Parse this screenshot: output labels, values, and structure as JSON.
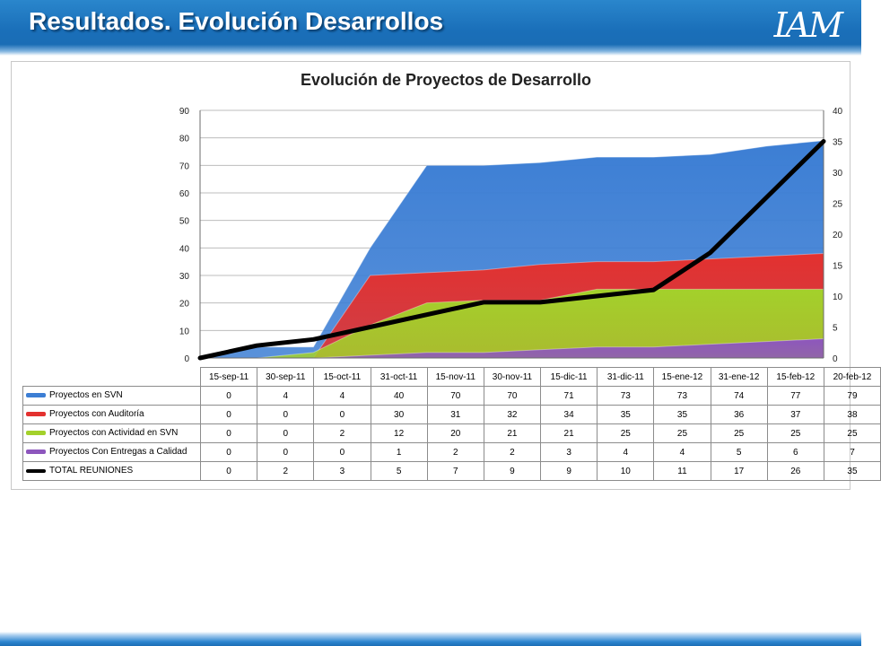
{
  "slide": {
    "title": "Resultados. Evolución Desarrollos",
    "logo": "IAM"
  },
  "colors": {
    "header": "#1a6fb9",
    "svn": "#3c7ed4",
    "auditoria": "#e3312f",
    "actividad": "#a3d12b",
    "entregas": "#8d56bd",
    "reuniones": "#000000"
  },
  "chart_data": {
    "type": "area",
    "title": "Evolución de Proyectos de Desarrollo",
    "categories": [
      "15-sep-11",
      "30-sep-11",
      "15-oct-11",
      "31-oct-11",
      "15-nov-11",
      "30-nov-11",
      "15-dic-11",
      "31-dic-11",
      "15-ene-12",
      "31-ene-12",
      "15-feb-12",
      "20-feb-12"
    ],
    "y_left": {
      "min": 0,
      "max": 90,
      "step": 10,
      "ticks": [
        "0",
        "10",
        "20",
        "30",
        "40",
        "50",
        "60",
        "70",
        "80",
        "90"
      ]
    },
    "y_right": {
      "min": 0,
      "max": 40,
      "step": 5,
      "ticks": [
        "0",
        "5",
        "10",
        "15",
        "20",
        "25",
        "30",
        "35",
        "40"
      ]
    },
    "grid": true,
    "legend": "data-table",
    "series": [
      {
        "name": "Proyectos en SVN",
        "kind": "area",
        "axis": "left",
        "color": "#3c7ed4",
        "values": [
          0,
          4,
          4,
          40,
          70,
          70,
          71,
          73,
          73,
          74,
          77,
          79
        ]
      },
      {
        "name": "Proyectos con Auditoría",
        "kind": "area",
        "axis": "left",
        "color": "#e3312f",
        "values": [
          0,
          0,
          0,
          30,
          31,
          32,
          34,
          35,
          35,
          36,
          37,
          38
        ]
      },
      {
        "name": "Proyectos con Actividad en SVN",
        "kind": "area",
        "axis": "left",
        "color": "#a3d12b",
        "values": [
          0,
          0,
          2,
          12,
          20,
          21,
          21,
          25,
          25,
          25,
          25,
          25
        ]
      },
      {
        "name": "Proyectos Con Entregas a Calidad",
        "kind": "area",
        "axis": "left",
        "color": "#8d56bd",
        "values": [
          0,
          0,
          0,
          1,
          2,
          2,
          3,
          4,
          4,
          5,
          6,
          7
        ]
      },
      {
        "name": "TOTAL REUNIONES",
        "kind": "line",
        "axis": "right",
        "color": "#000000",
        "values": [
          0,
          2,
          3,
          5,
          7,
          9,
          9,
          10,
          11,
          17,
          26,
          35
        ]
      }
    ]
  }
}
